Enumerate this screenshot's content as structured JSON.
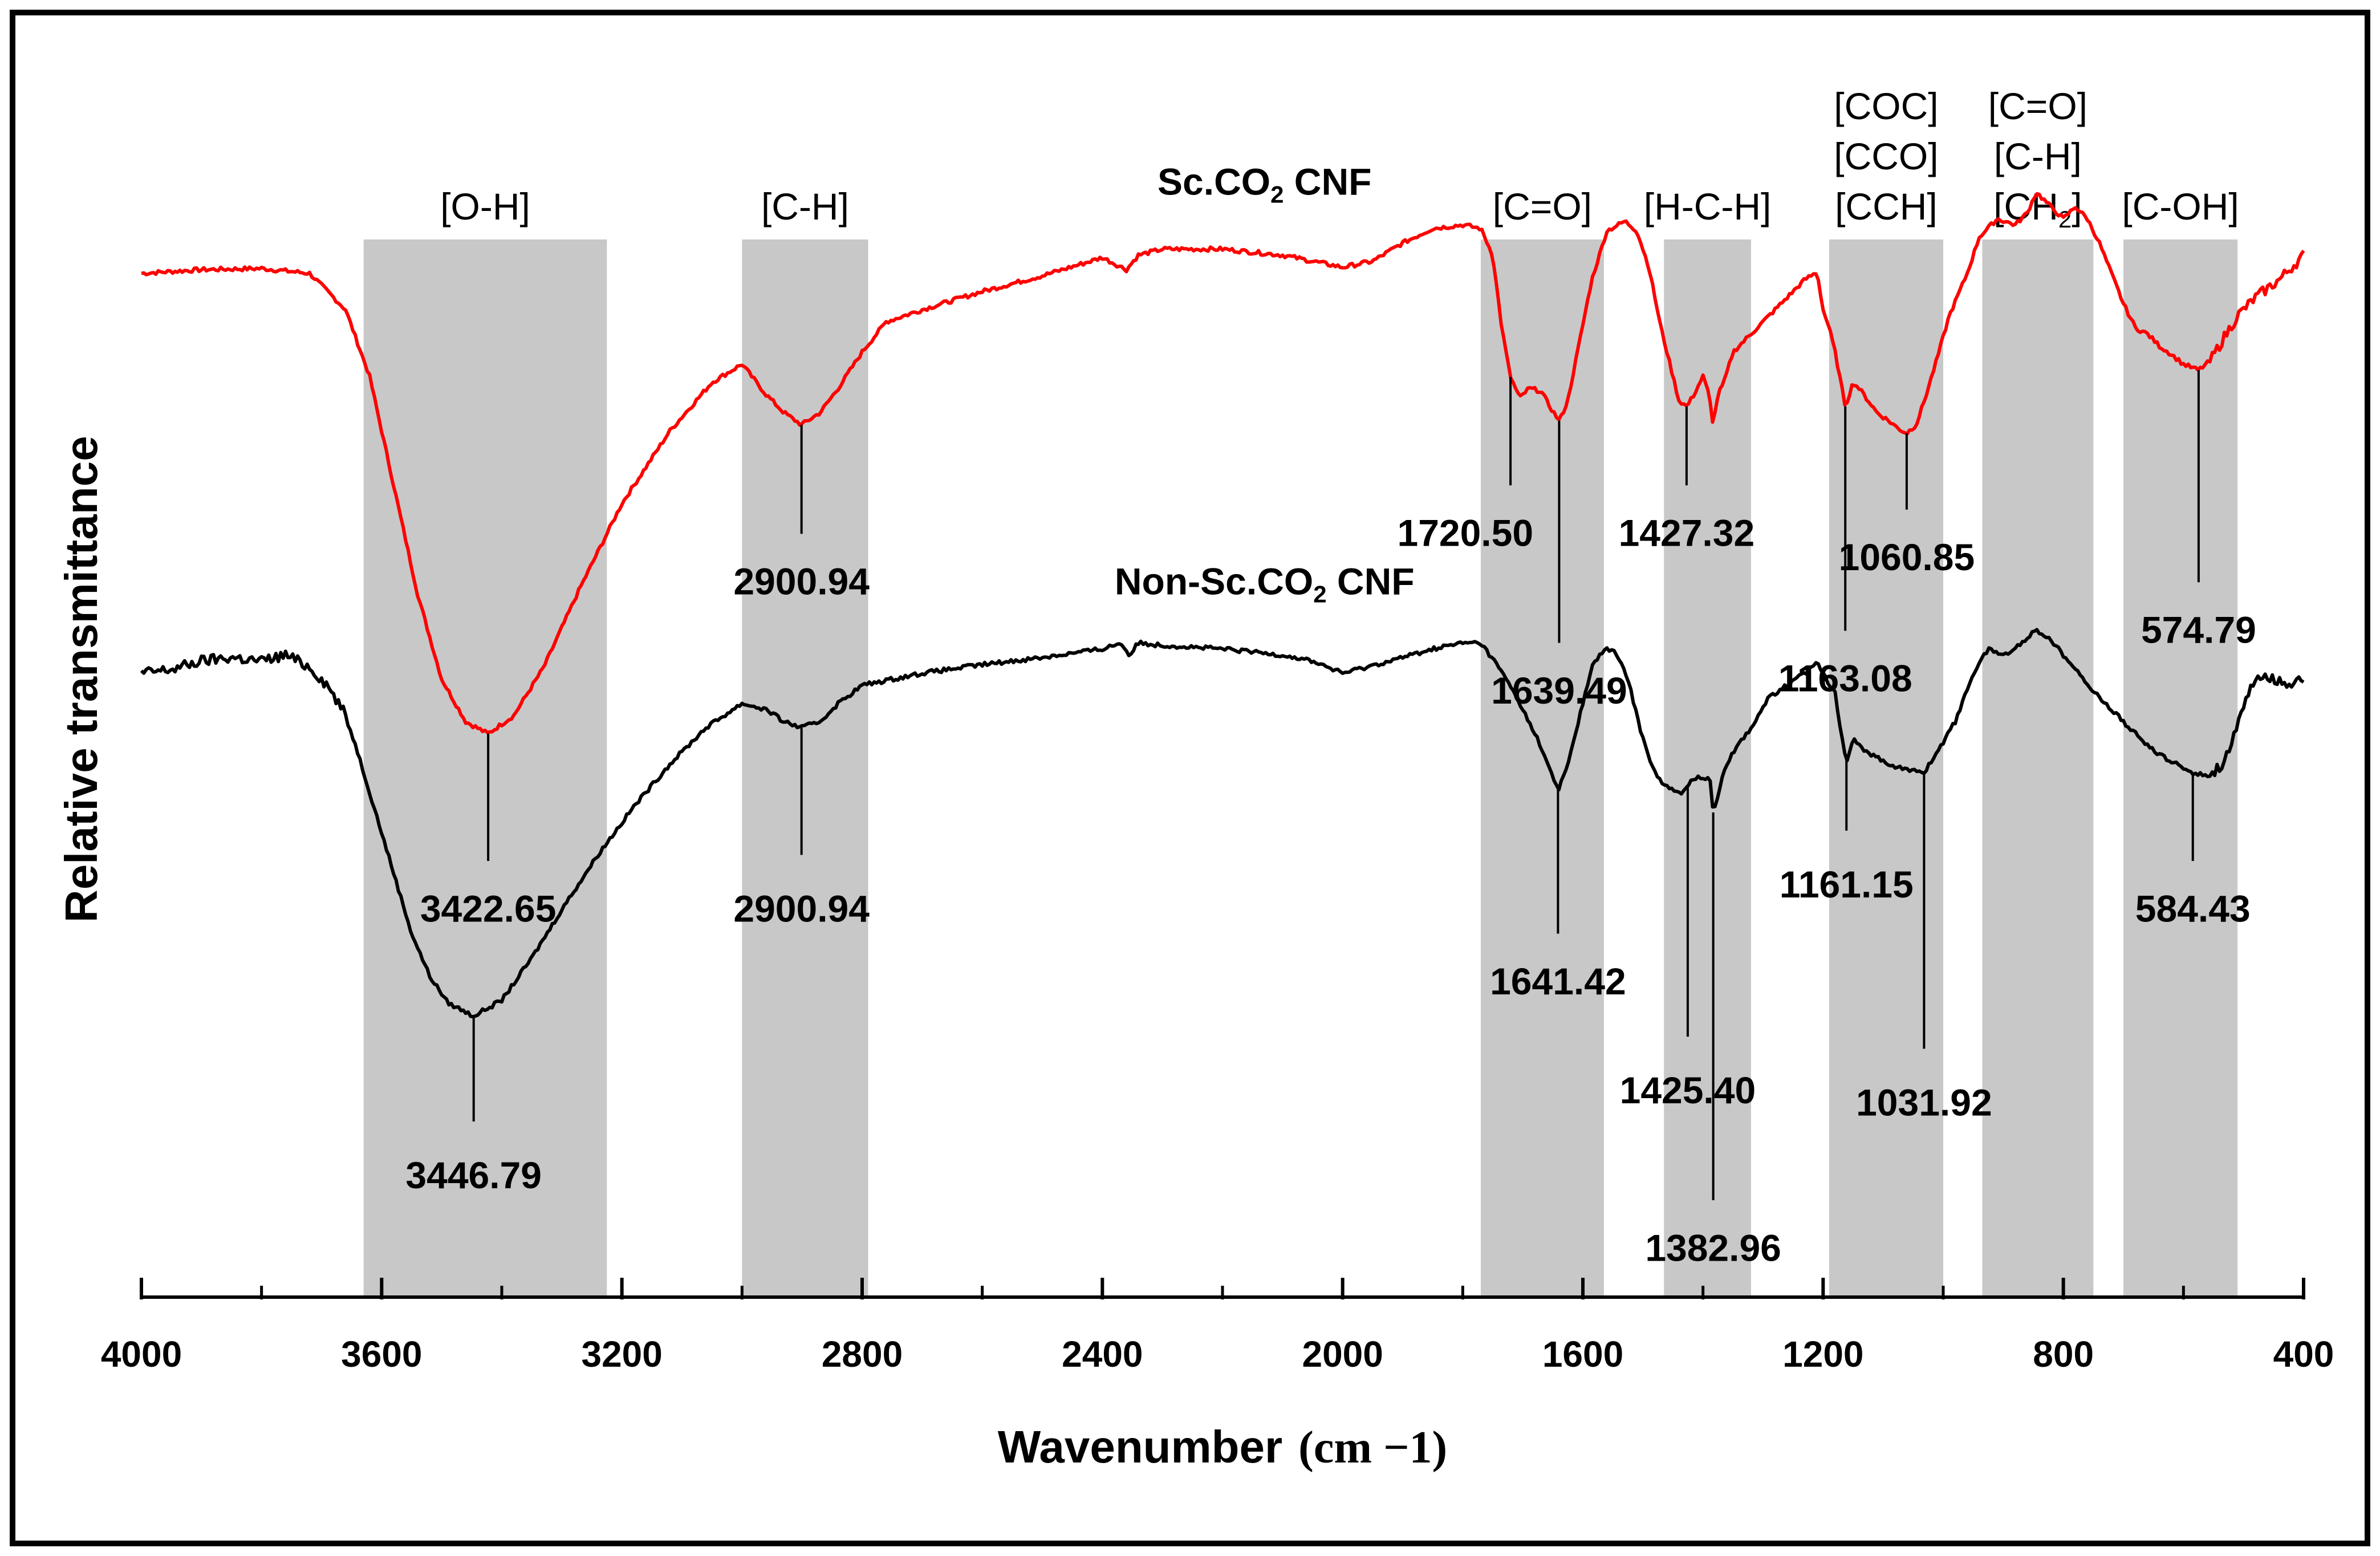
{
  "chart_data": {
    "type": "line",
    "title": "",
    "xlabel": "Wavenumber",
    "xlabel_unit": "(cm −1)",
    "ylabel": "Relative transmittance",
    "xlim": [
      4000,
      400
    ],
    "ylim": [
      0,
      100
    ],
    "x_ticks": [
      "4000",
      "3600",
      "3200",
      "2800",
      "2400",
      "2000",
      "1600",
      "1200",
      "800",
      "400"
    ],
    "grid": false,
    "bands": [
      {
        "from": 3630,
        "to": 3225,
        "labels": [
          "[O-H]"
        ]
      },
      {
        "from": 3000,
        "to": 2790,
        "labels": [
          "[C-H]"
        ]
      },
      {
        "from": 1770,
        "to": 1565,
        "labels": [
          "[C=O]"
        ]
      },
      {
        "from": 1465,
        "to": 1320,
        "labels": [
          "[H-C-H]"
        ]
      },
      {
        "from": 1190,
        "to": 1000,
        "labels": [
          "[COC]",
          "[CCO]",
          "[CCH]"
        ]
      },
      {
        "from": 935,
        "to": 750,
        "labels": [
          "[C=O]",
          "[C-H]",
          "[CH2]"
        ]
      },
      {
        "from": 700,
        "to": 510,
        "labels": [
          "[C-OH]"
        ]
      }
    ],
    "series": [
      {
        "name": "Sc.CO2 CNF",
        "name_main": "Sc.CO",
        "name_sub": "2",
        "name_tail": " CNF",
        "color": "#ff0000",
        "x": [
          4000,
          3900,
          3800,
          3720,
          3660,
          3620,
          3580,
          3540,
          3500,
          3460,
          3423,
          3380,
          3330,
          3270,
          3200,
          3120,
          3050,
          3000,
          2960,
          2930,
          2901,
          2870,
          2840,
          2800,
          2760,
          2700,
          2600,
          2500,
          2400,
          2360,
          2340,
          2300,
          2200,
          2100,
          2000,
          1950,
          1900,
          1850,
          1800,
          1770,
          1750,
          1735,
          1721,
          1705,
          1690,
          1670,
          1655,
          1639,
          1625,
          1605,
          1585,
          1560,
          1530,
          1510,
          1490,
          1470,
          1450,
          1440,
          1427,
          1415,
          1400,
          1390,
          1383,
          1375,
          1365,
          1350,
          1320,
          1290,
          1260,
          1230,
          1210,
          1200,
          1190,
          1180,
          1163,
          1150,
          1140,
          1125,
          1110,
          1090,
          1075,
          1061,
          1045,
          1030,
          1010,
          990,
          960,
          940,
          910,
          880,
          860,
          845,
          825,
          800,
          780,
          760,
          740,
          720,
          700,
          680,
          660,
          640,
          620,
          600,
          575,
          555,
          535,
          510,
          480,
          440,
          410,
          400
        ],
        "y": [
          84.5,
          84.8,
          84.9,
          84.5,
          81.5,
          76,
          67,
          58,
          51,
          47.5,
          46.5,
          48,
          52,
          58.5,
          65.5,
          71.5,
          75.5,
          77,
          74.5,
          73,
          72,
          73,
          75,
          78,
          80.5,
          81.5,
          83,
          84.3,
          85.8,
          84.8,
          86,
          86.5,
          86.5,
          86,
          85,
          85.5,
          87,
          88.2,
          88.5,
          88.2,
          86,
          80,
          76,
          74.2,
          75,
          74.8,
          73.5,
          72.3,
          74,
          79,
          84,
          88,
          88.8,
          88,
          85,
          80,
          76,
          74,
          73.5,
          74.5,
          76,
          74.5,
          72,
          74.5,
          75.5,
          78,
          79.5,
          81,
          82.5,
          84,
          84.6,
          81.5,
          80,
          78,
          73.5,
          75.5,
          75,
          74,
          73,
          72.3,
          71.7,
          71.3,
          72,
          74.2,
          77.5,
          81,
          84.5,
          87.5,
          89,
          88.5,
          89.5,
          91.2,
          90.2,
          89,
          90,
          89,
          87,
          84.5,
          82,
          80,
          79.5,
          78.5,
          77.8,
          77,
          76.5,
          77.3,
          79,
          81,
          82.5,
          84,
          85.5,
          86
        ]
      },
      {
        "name": "Non-Sc.CO2 CNF",
        "name_main": "Non-Sc.CO",
        "name_sub": "2",
        "name_tail": " CNF",
        "color": "#000000",
        "x": [
          4000,
          3950,
          3900,
          3850,
          3800,
          3760,
          3720,
          3690,
          3660,
          3640,
          3610,
          3580,
          3550,
          3520,
          3490,
          3447,
          3400,
          3350,
          3300,
          3240,
          3180,
          3120,
          3060,
          3000,
          2960,
          2930,
          2901,
          2870,
          2840,
          2800,
          2700,
          2600,
          2500,
          2400,
          2370,
          2355,
          2340,
          2300,
          2200,
          2100,
          2050,
          2000,
          1960,
          1900,
          1850,
          1800,
          1770,
          1740,
          1710,
          1690,
          1670,
          1655,
          1641,
          1625,
          1605,
          1585,
          1565,
          1545,
          1525,
          1505,
          1490,
          1470,
          1450,
          1435,
          1425,
          1410,
          1395,
          1388,
          1383,
          1375,
          1365,
          1350,
          1320,
          1290,
          1260,
          1230,
          1210,
          1195,
          1180,
          1170,
          1161,
          1150,
          1140,
          1125,
          1110,
          1090,
          1060,
          1032,
          1010,
          980,
          950,
          925,
          900,
          880,
          860,
          845,
          825,
          800,
          780,
          760,
          740,
          720,
          700,
          680,
          660,
          640,
          620,
          584,
          560,
          535,
          510,
          490,
          470,
          450,
          430,
          410,
          400
        ],
        "y": [
          51.5,
          51.8,
          52.5,
          52.8,
          52.5,
          53,
          52,
          50.5,
          48,
          45,
          40,
          35,
          30,
          26.5,
          24.3,
          23.2,
          24.5,
          28,
          32,
          36.5,
          40.5,
          44,
          47,
          49,
          48.5,
          47.5,
          47,
          47.5,
          49,
          50.5,
          51.5,
          52.2,
          52.8,
          53.5,
          54,
          53,
          54,
          53.8,
          53.5,
          53,
          52.5,
          51.5,
          52,
          52.8,
          53.5,
          54,
          54,
          52,
          49.5,
          47.5,
          45.5,
          43.5,
          41.8,
          44,
          48,
          52,
          53.5,
          53.2,
          51,
          47,
          44.5,
          42.5,
          41.8,
          41.5,
          42.3,
          43,
          42.8,
          42.6,
          40,
          41.5,
          43.5,
          45,
          47,
          49.5,
          50.5,
          51.5,
          52.5,
          51,
          50,
          46.5,
          44.3,
          46,
          45.5,
          45,
          44.5,
          44,
          43.5,
          43.3,
          45,
          47.5,
          51.5,
          53.5,
          53,
          53.5,
          54.5,
          55,
          54.5,
          53,
          52,
          50.5,
          49.5,
          48.5,
          47.5,
          46.5,
          45.5,
          44.8,
          44.2,
          43.3,
          43,
          44,
          47,
          50,
          51.5,
          51,
          50.5,
          51,
          51
        ]
      }
    ],
    "peak_labels": [
      {
        "series": "Sc.CO2 CNF",
        "x": 3422.65,
        "text": "3422.65",
        "y_end": 36,
        "label_y": 31
      },
      {
        "series": "Sc.CO2 CNF",
        "x": 2900.94,
        "text": "2900.94",
        "y_end": 63,
        "label_y": 58
      },
      {
        "series": "Sc.CO2 CNF",
        "x": 1720.5,
        "text": "1720.50",
        "y_end": 67,
        "label_y": 62,
        "label_anchor": "end"
      },
      {
        "series": "Sc.CO2 CNF",
        "x": 1639.49,
        "text": "1639.49",
        "y_end": 54,
        "label_y": 49
      },
      {
        "series": "Sc.CO2 CNF",
        "x": 1427.32,
        "text": "1427.32",
        "y_end": 67,
        "label_y": 62
      },
      {
        "series": "Sc.CO2 CNF",
        "x": 1163.08,
        "text": "1163.08",
        "y_end": 55,
        "label_y": 50
      },
      {
        "series": "Sc.CO2 CNF",
        "x": 1060.85,
        "text": "1060.85",
        "y_end": 65,
        "label_y": 60
      },
      {
        "series": "Sc.CO2 CNF",
        "x": 574.79,
        "text": "574.79",
        "y_end": 59,
        "label_y": 54
      },
      {
        "series": "Non-Sc.CO2 CNF",
        "x": 3446.79,
        "text": "3446.79",
        "y_end": 14.5,
        "label_y": 9
      },
      {
        "series": "Non-Sc.CO2 CNF",
        "x": 2900.94,
        "text": "2900.94",
        "y_end": 36.5,
        "label_y": 31
      },
      {
        "series": "Non-Sc.CO2 CNF",
        "x": 1641.42,
        "text": "1641.42",
        "y_end": 30,
        "label_y": 25
      },
      {
        "series": "Non-Sc.CO2 CNF",
        "x": 1425.4,
        "text": "1425.40",
        "y_end": 21.5,
        "label_y": 16
      },
      {
        "series": "Non-Sc.CO2 CNF",
        "x": 1382.96,
        "text": "1382.96",
        "y_end": 8,
        "label_y": 3
      },
      {
        "series": "Non-Sc.CO2 CNF",
        "x": 1161.15,
        "text": "1161.15",
        "y_end": 38.5,
        "label_y": 33
      },
      {
        "series": "Non-Sc.CO2 CNF",
        "x": 1031.92,
        "text": "1031.92",
        "y_end": 20.5,
        "label_y": 15
      },
      {
        "series": "Non-Sc.CO2 CNF",
        "x": 584.43,
        "text": "584.43",
        "y_end": 36,
        "label_y": 31
      }
    ],
    "series_label_positions": [
      {
        "series": "Sc.CO2 CNF",
        "x": 2130,
        "y": 91
      },
      {
        "series": "Non-Sc.CO2 CNF",
        "x": 2130,
        "y": 58
      }
    ]
  }
}
